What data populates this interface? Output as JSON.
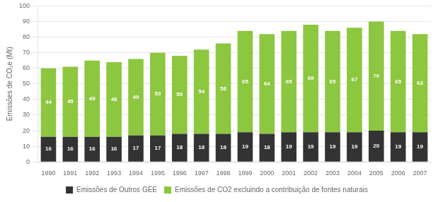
{
  "chart_data": {
    "type": "bar",
    "stacked": true,
    "categories": [
      "1990",
      "1991",
      "1992",
      "1993",
      "1994",
      "1995",
      "1996",
      "1997",
      "1998",
      "1999",
      "2000",
      "2001",
      "2002",
      "2003",
      "2004",
      "2005",
      "2006",
      "2007"
    ],
    "series": [
      {
        "name": "Emissões de Outros GEE",
        "color": "#333333",
        "values": [
          16,
          16,
          16,
          16,
          17,
          17,
          18,
          18,
          18,
          19,
          18,
          19,
          19,
          19,
          19,
          20,
          19,
          19
        ]
      },
      {
        "name": "Emissões de CO2 excluindo a contribuição de fontes naturais",
        "color": "#8dc63f",
        "values": [
          44,
          45,
          49,
          48,
          49,
          53,
          50,
          54,
          58,
          65,
          64,
          65,
          69,
          65,
          67,
          70,
          65,
          63
        ]
      }
    ],
    "ylabel": "Emissões de CO₂e (Mt)",
    "ylim": [
      0,
      100
    ],
    "yticks": [
      0,
      10,
      20,
      30,
      40,
      50,
      60,
      70,
      80,
      90,
      100
    ],
    "grid": "y",
    "legend": "bottom",
    "data_labels": true
  }
}
